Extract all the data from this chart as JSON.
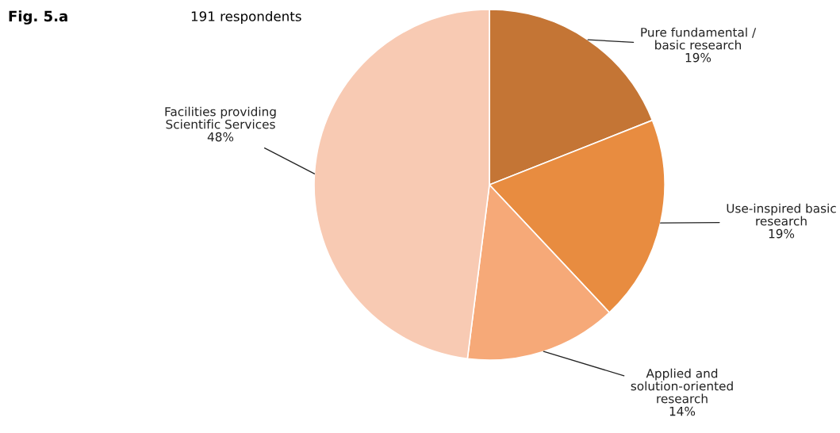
{
  "chart_data": {
    "type": "pie",
    "title": "Fig. 5.a",
    "subtitle": "191 respondents",
    "categories": [
      "Pure fundamental /\nbasic research",
      "Use-inspired basic\nresearch",
      "Applied and\nsolution-oriented\nresearch",
      "Facilities providing\nScientific Services"
    ],
    "values": [
      19,
      19,
      14,
      48
    ],
    "colors": [
      "#c47535",
      "#e88c40",
      "#f6a978",
      "#f8cab3"
    ],
    "value_labels": [
      "19%",
      "19%",
      "14%",
      "48%"
    ]
  }
}
